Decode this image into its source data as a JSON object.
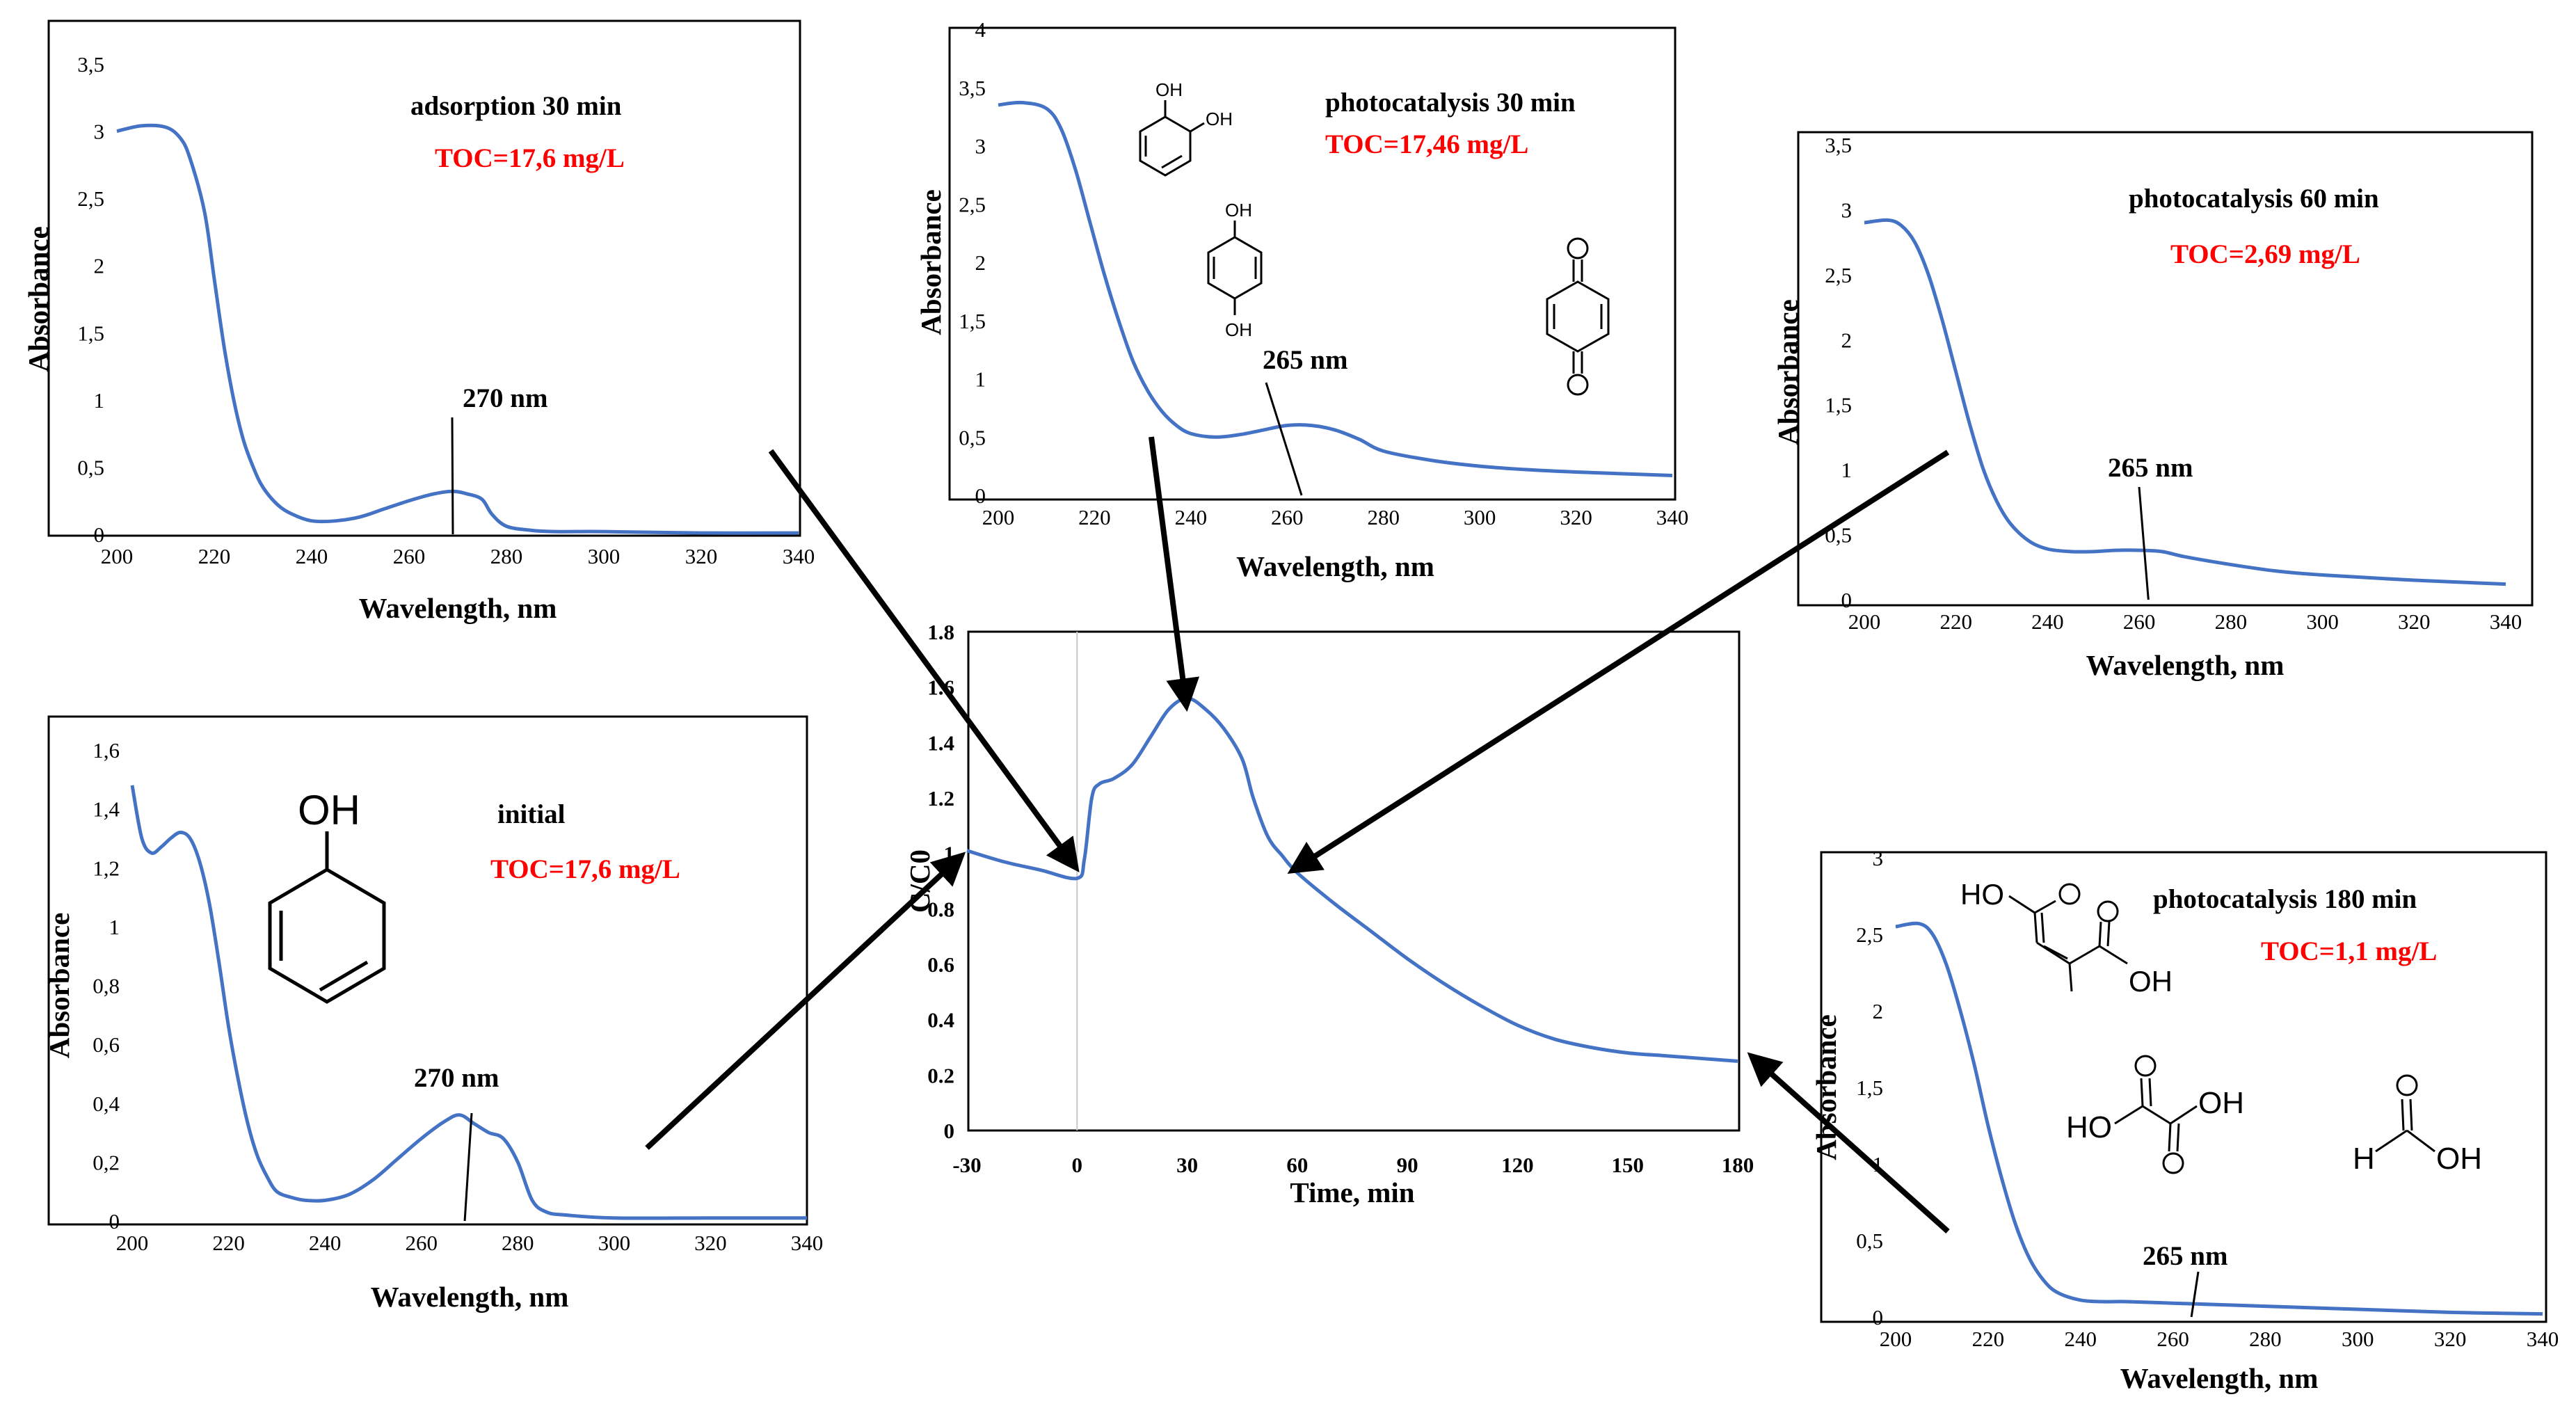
{
  "colors": {
    "line": "#4472c4",
    "toc": "#ff0000",
    "text": "#000000"
  },
  "chart_data": [
    {
      "id": "adsorption",
      "type": "line",
      "title": "adsorption 30 min",
      "toc": "TOC=17,6 mg/L",
      "peak_label": "270 nm",
      "peak_x": 269,
      "xlabel": "Wavelength, nm",
      "ylabel": "Absorbance",
      "xlim": [
        200,
        340
      ],
      "ylim": [
        0,
        3.5
      ],
      "xticks": [
        200,
        220,
        240,
        260,
        280,
        300,
        320,
        340
      ],
      "xtick_labels": [
        "200",
        "220",
        "240",
        "260",
        "280",
        "300",
        "320",
        "340"
      ],
      "yticks": [
        0,
        0.5,
        1,
        1.5,
        2,
        2.5,
        3,
        3.5
      ],
      "ytick_labels": [
        "0",
        "0,5",
        "1",
        "1,5",
        "2",
        "2,5",
        "3",
        "3,5"
      ],
      "x": [
        200,
        205,
        210,
        213,
        215,
        218,
        220,
        222,
        224,
        226,
        228,
        230,
        233,
        236,
        240,
        245,
        250,
        255,
        260,
        265,
        269,
        272,
        275,
        277,
        280,
        285,
        290,
        300,
        320,
        340
      ],
      "y": [
        3.0,
        3.04,
        3.03,
        2.95,
        2.8,
        2.4,
        1.9,
        1.4,
        1.0,
        0.7,
        0.5,
        0.35,
        0.22,
        0.15,
        0.1,
        0.1,
        0.13,
        0.19,
        0.25,
        0.3,
        0.32,
        0.3,
        0.26,
        0.15,
        0.06,
        0.03,
        0.02,
        0.02,
        0.01,
        0.01
      ]
    },
    {
      "id": "photo30",
      "type": "line",
      "title": "photocatalysis 30 min",
      "toc": "TOC=17,46 mg/L",
      "peak_label": "265 nm",
      "peak_x": 263,
      "xlabel": "Wavelength, nm",
      "ylabel": "Absorbance",
      "xlim": [
        200,
        340
      ],
      "ylim": [
        0,
        4
      ],
      "xticks": [
        200,
        220,
        240,
        260,
        280,
        300,
        320,
        340
      ],
      "xtick_labels": [
        "200",
        "220",
        "240",
        "260",
        "280",
        "300",
        "320",
        "340"
      ],
      "yticks": [
        0,
        0.5,
        1,
        1.5,
        2,
        2.5,
        3,
        3.5,
        4
      ],
      "ytick_labels": [
        "0",
        "0,5",
        "1",
        "1,5",
        "2",
        "2,5",
        "3",
        "3,5",
        "4"
      ],
      "x": [
        200,
        205,
        210,
        213,
        216,
        219,
        222,
        225,
        228,
        231,
        234,
        237,
        240,
        245,
        250,
        255,
        260,
        265,
        270,
        275,
        280,
        290,
        300,
        310,
        320,
        340
      ],
      "y": [
        3.35,
        3.37,
        3.32,
        3.15,
        2.8,
        2.35,
        1.9,
        1.5,
        1.15,
        0.9,
        0.72,
        0.6,
        0.53,
        0.5,
        0.52,
        0.56,
        0.6,
        0.6,
        0.56,
        0.48,
        0.38,
        0.3,
        0.25,
        0.22,
        0.2,
        0.17
      ]
    },
    {
      "id": "photo60",
      "type": "line",
      "title": "photocatalysis 60 min",
      "toc": "TOC=2,69 mg/L",
      "peak_label": "265 nm",
      "peak_x": 262,
      "xlabel": "Wavelength, nm",
      "ylabel": "Absorbance",
      "xlim": [
        200,
        340
      ],
      "ylim": [
        0,
        3.5
      ],
      "xticks": [
        200,
        220,
        240,
        260,
        280,
        300,
        320,
        340
      ],
      "xtick_labels": [
        "200",
        "220",
        "240",
        "260",
        "280",
        "300",
        "320",
        "340"
      ],
      "yticks": [
        0,
        0.5,
        1,
        1.5,
        2,
        2.5,
        3,
        3.5
      ],
      "ytick_labels": [
        "0",
        "0,5",
        "1",
        "1,5",
        "2",
        "2,5",
        "3",
        "3,5"
      ],
      "x": [
        200,
        205,
        208,
        211,
        214,
        217,
        220,
        223,
        226,
        229,
        232,
        236,
        240,
        245,
        250,
        255,
        260,
        265,
        270,
        280,
        290,
        300,
        320,
        340
      ],
      "y": [
        2.9,
        2.92,
        2.88,
        2.75,
        2.5,
        2.15,
        1.75,
        1.35,
        1.0,
        0.75,
        0.58,
        0.45,
        0.39,
        0.37,
        0.37,
        0.38,
        0.38,
        0.37,
        0.33,
        0.27,
        0.22,
        0.19,
        0.15,
        0.12
      ]
    },
    {
      "id": "initial",
      "type": "line",
      "title": "initial",
      "toc": "TOC=17,6 mg/L",
      "peak_label": "270 nm",
      "peak_x": 269,
      "xlabel": "Wavelength, nm",
      "ylabel": "Absorbance",
      "xlim": [
        200,
        340
      ],
      "ylim": [
        0,
        1.6
      ],
      "xticks": [
        200,
        220,
        240,
        260,
        280,
        300,
        320,
        340
      ],
      "xtick_labels": [
        "200",
        "220",
        "240",
        "260",
        "280",
        "300",
        "320",
        "340"
      ],
      "yticks": [
        0,
        0.2,
        0.4,
        0.6,
        0.8,
        1,
        1.2,
        1.4,
        1.6
      ],
      "ytick_labels": [
        "0",
        "0,2",
        "0,4",
        "0,6",
        "0,8",
        "1",
        "1,2",
        "1,4",
        "1,6"
      ],
      "x": [
        200,
        202,
        204,
        206,
        208,
        210,
        212,
        214,
        216,
        218,
        220,
        222,
        224,
        226,
        228,
        230,
        233,
        236,
        240,
        245,
        250,
        255,
        260,
        265,
        268,
        271,
        274,
        277,
        280,
        283,
        286,
        290,
        300,
        320,
        340
      ],
      "y": [
        1.48,
        1.3,
        1.25,
        1.27,
        1.3,
        1.32,
        1.3,
        1.22,
        1.08,
        0.88,
        0.66,
        0.48,
        0.33,
        0.22,
        0.15,
        0.1,
        0.08,
        0.07,
        0.07,
        0.09,
        0.14,
        0.21,
        0.28,
        0.34,
        0.36,
        0.33,
        0.3,
        0.28,
        0.2,
        0.07,
        0.03,
        0.02,
        0.01,
        0.01,
        0.01
      ]
    },
    {
      "id": "photo180",
      "type": "line",
      "title": "photocatalysis 180 min",
      "toc": "TOC=1,1 mg/L",
      "peak_label": "265 nm",
      "peak_x": 264,
      "xlabel": "Wavelength, nm",
      "ylabel": "Absorbance",
      "xlim": [
        200,
        340
      ],
      "ylim": [
        0,
        3
      ],
      "xticks": [
        200,
        220,
        240,
        260,
        280,
        300,
        320,
        340
      ],
      "xtick_labels": [
        "200",
        "220",
        "240",
        "260",
        "280",
        "300",
        "320",
        "340"
      ],
      "yticks": [
        0,
        0.5,
        1,
        1.5,
        2,
        2.5,
        3
      ],
      "ytick_labels": [
        "0",
        "0,5",
        "1",
        "1,5",
        "2",
        "2,5",
        "3"
      ],
      "x": [
        200,
        205,
        208,
        211,
        214,
        217,
        220,
        223,
        226,
        229,
        232,
        235,
        240,
        245,
        250,
        260,
        270,
        280,
        300,
        320,
        340
      ],
      "y": [
        2.55,
        2.57,
        2.5,
        2.3,
        2.0,
        1.65,
        1.25,
        0.9,
        0.6,
        0.38,
        0.24,
        0.16,
        0.11,
        0.1,
        0.1,
        0.09,
        0.08,
        0.07,
        0.05,
        0.03,
        0.02
      ]
    },
    {
      "id": "main",
      "type": "line",
      "xlabel": "Time, min",
      "ylabel": "C/C0",
      "xlim": [
        -30,
        180
      ],
      "ylim": [
        0,
        1.8
      ],
      "xticks": [
        -30,
        0,
        30,
        60,
        90,
        120,
        150,
        180
      ],
      "xtick_labels": [
        "-30",
        "0",
        "30",
        "60",
        "90",
        "120",
        "150",
        "180"
      ],
      "yticks": [
        0,
        0.2,
        0.4,
        0.6,
        0.8,
        1,
        1.2,
        1.4,
        1.6,
        1.8
      ],
      "ytick_labels": [
        "0",
        "0.2",
        "0.4",
        "0.6",
        "0.8",
        "1",
        "1.2",
        "1.4",
        "1.6",
        "1.8"
      ],
      "x": [
        -30,
        -20,
        -10,
        0,
        2,
        4,
        6,
        10,
        15,
        20,
        25,
        30,
        35,
        40,
        45,
        48,
        52,
        56,
        60,
        70,
        80,
        90,
        100,
        110,
        120,
        130,
        140,
        150,
        160,
        170,
        180
      ],
      "y": [
        1.01,
        0.97,
        0.94,
        0.91,
        0.98,
        1.2,
        1.25,
        1.27,
        1.32,
        1.42,
        1.52,
        1.56,
        1.52,
        1.45,
        1.34,
        1.2,
        1.06,
        0.99,
        0.93,
        0.82,
        0.72,
        0.62,
        0.53,
        0.45,
        0.38,
        0.33,
        0.3,
        0.28,
        0.27,
        0.26,
        0.25
      ]
    }
  ]
}
